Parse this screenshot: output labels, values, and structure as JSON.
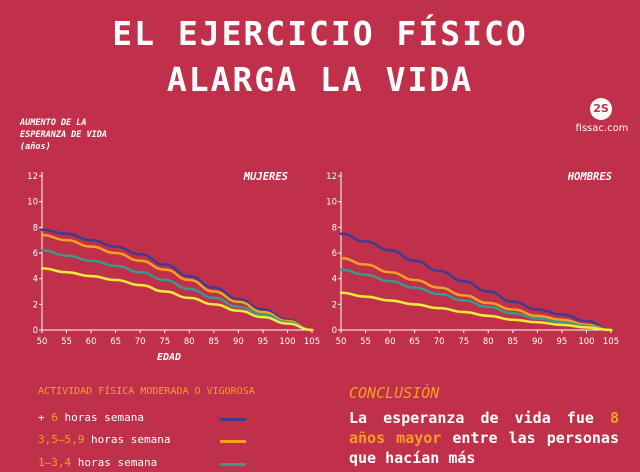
{
  "header": {
    "title_line1": "EL EJERCICIO FÍSICO",
    "title_line2": "ALARGA LA VIDA"
  },
  "y_axis_title": [
    "AUMENTO DE LA",
    "ESPERANZA DE VIDA",
    "(años)"
  ],
  "x_axis_title": "EDAD",
  "logo": {
    "mark": "2S",
    "site": "fissac.com"
  },
  "colors": {
    "background": "#c0304a",
    "series_6plus": "#3d3d8f",
    "series_3_5": "#f5a020",
    "series_1_3": "#3a9a8a",
    "series_lt1": "#f0ea3a",
    "accent": "#f5a020"
  },
  "legend": {
    "title": "ACTIVIDAD FÍSICA MODERADA O VIGOROSA",
    "items": [
      {
        "prefix": "+ ",
        "num": "6",
        "suffix": " horas semana",
        "color": "#3d3d8f"
      },
      {
        "prefix": "",
        "num": "3,5–5,9",
        "suffix": " horas semana",
        "color": "#f5a020"
      },
      {
        "prefix": "",
        "num": "1–3,4",
        "suffix": " horas semana",
        "color": "#3a9a8a"
      }
    ]
  },
  "conclusion": {
    "title": "CONCLUSIÓN",
    "text_a": "La esperanza de vida fue ",
    "highlight": "8 años mayor",
    "text_b": " entre las personas que hacían más"
  },
  "chart_data": [
    {
      "type": "line",
      "title": "MUJERES",
      "xlabel": "EDAD",
      "ylabel": "AUMENTO DE LA ESPERANZA DE VIDA (años)",
      "x": [
        50,
        55,
        60,
        65,
        70,
        75,
        80,
        85,
        90,
        95,
        100,
        105
      ],
      "xlim": [
        50,
        105
      ],
      "ylim": [
        0,
        12
      ],
      "yticks": [
        0,
        2,
        4,
        6,
        8,
        10,
        12
      ],
      "grid": false,
      "series": [
        {
          "color": "#3d3d8f",
          "values": [
            7.8,
            7.5,
            7.0,
            6.5,
            5.9,
            5.1,
            4.2,
            3.3,
            2.4,
            1.6,
            0.8,
            0.0
          ]
        },
        {
          "color": "#f5a020",
          "values": [
            7.4,
            7.0,
            6.5,
            6.0,
            5.4,
            4.7,
            3.9,
            3.0,
            2.2,
            1.4,
            0.7,
            0.0
          ]
        },
        {
          "color": "#3a9a8a",
          "values": [
            6.2,
            5.8,
            5.4,
            5.0,
            4.5,
            3.9,
            3.2,
            2.5,
            1.8,
            1.2,
            0.6,
            0.0
          ]
        },
        {
          "color": "#f0ea3a",
          "values": [
            4.8,
            4.5,
            4.2,
            3.9,
            3.5,
            3.0,
            2.5,
            2.0,
            1.5,
            1.0,
            0.5,
            0.0
          ]
        }
      ]
    },
    {
      "type": "line",
      "title": "HOMBRES",
      "xlabel": "EDAD",
      "ylabel": "AUMENTO DE LA ESPERANZA DE VIDA (años)",
      "x": [
        50,
        55,
        60,
        65,
        70,
        75,
        80,
        85,
        90,
        95,
        100,
        105
      ],
      "xlim": [
        50,
        105
      ],
      "ylim": [
        0,
        12
      ],
      "yticks": [
        0,
        2,
        4,
        6,
        8,
        10,
        12
      ],
      "grid": false,
      "series": [
        {
          "color": "#3d3d8f",
          "values": [
            7.5,
            6.9,
            6.2,
            5.4,
            4.6,
            3.8,
            3.0,
            2.2,
            1.6,
            1.2,
            0.7,
            0.0
          ]
        },
        {
          "color": "#f5a020",
          "values": [
            5.6,
            5.1,
            4.5,
            3.9,
            3.3,
            2.7,
            2.1,
            1.6,
            1.1,
            0.8,
            0.4,
            0.0
          ]
        },
        {
          "color": "#3a9a8a",
          "values": [
            4.7,
            4.3,
            3.8,
            3.3,
            2.8,
            2.3,
            1.8,
            1.3,
            0.9,
            0.6,
            0.3,
            0.0
          ]
        },
        {
          "color": "#f0ea3a",
          "values": [
            2.9,
            2.6,
            2.3,
            2.0,
            1.7,
            1.4,
            1.1,
            0.8,
            0.6,
            0.4,
            0.2,
            0.0
          ]
        }
      ]
    }
  ]
}
